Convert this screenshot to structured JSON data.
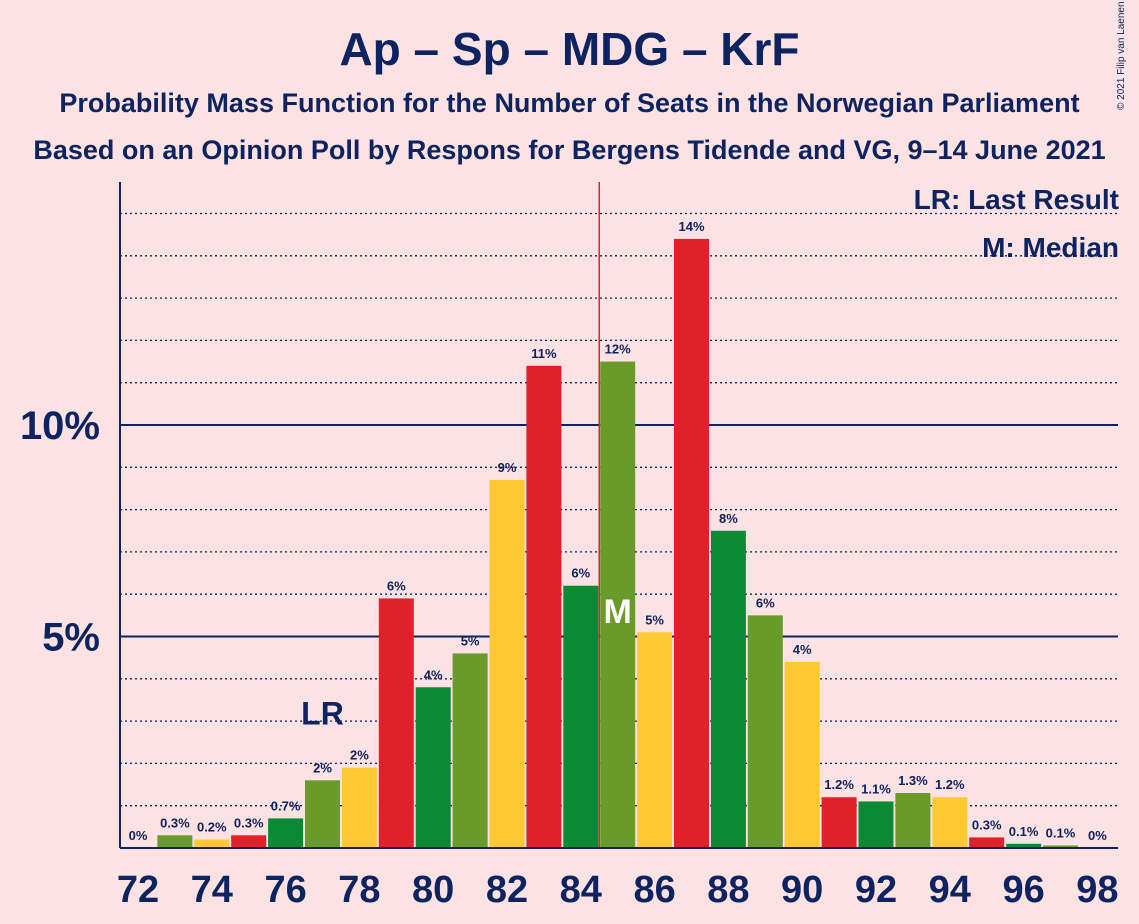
{
  "header": {
    "title": "Ap – Sp – MDG – KrF",
    "subtitle1": "Probability Mass Function for the Number of Seats in the Norwegian Parliament",
    "subtitle2": "Based on an Opinion Poll by Respons for Bergens Tidende and VG, 9–14 June 2021",
    "copyright": "© 2021 Filip van Laenen"
  },
  "legend": {
    "last_result": "LR: Last Result",
    "median": "M: Median"
  },
  "colors": {
    "background": "#fde2e4",
    "axis": "#0d2461",
    "threshold_line": "#e0202a",
    "parties": [
      "#0a8a34",
      "#6a9a2a",
      "#ffc933",
      "#e0202a"
    ]
  },
  "chart_data": {
    "type": "bar",
    "x": [
      72,
      73,
      74,
      75,
      76,
      77,
      78,
      79,
      80,
      81,
      82,
      83,
      84,
      85,
      86,
      87,
      88,
      89,
      90,
      91,
      92,
      93,
      94,
      95,
      96,
      97,
      98
    ],
    "values": [
      0,
      0.3,
      0.2,
      0.3,
      0.7,
      1.6,
      1.9,
      5.9,
      3.8,
      4.6,
      8.7,
      11.4,
      6.2,
      11.5,
      5.1,
      14.4,
      7.5,
      5.5,
      4.4,
      1.2,
      1.1,
      1.3,
      1.2,
      0.25,
      0.1,
      0.06,
      0
    ],
    "data_labels": [
      "0%",
      "0.3%",
      "0.2%",
      "0.3%",
      "0.7%",
      "2%",
      "2%",
      "6%",
      "4%",
      "5%",
      "9%",
      "11%",
      "6%",
      "12%",
      "5%",
      "14%",
      "8%",
      "6%",
      "4%",
      "1.2%",
      "1.1%",
      "1.3%",
      "1.2%",
      "0.3%",
      "0.1%",
      "0.1%",
      "0%"
    ],
    "x_tick_labels": [
      "72",
      "74",
      "76",
      "78",
      "80",
      "82",
      "84",
      "86",
      "88",
      "90",
      "92",
      "94",
      "96",
      "98"
    ],
    "y_tick_labels": [
      "5%",
      "10%"
    ],
    "y_ticks": [
      5,
      10
    ],
    "ylim": [
      0,
      15.6
    ],
    "majority_threshold": 84.5,
    "last_result": {
      "seat": 77,
      "label": "LR"
    },
    "median": {
      "seat": 85,
      "label": "M"
    },
    "gridlines": true,
    "legend_placement": "top-right"
  }
}
